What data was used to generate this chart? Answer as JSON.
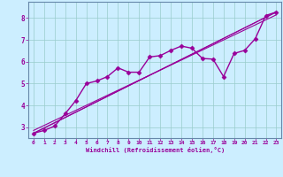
{
  "xlabel": "Windchill (Refroidissement éolien,°C)",
  "bg_color": "#cceeff",
  "line_color": "#990099",
  "grid_color": "#99cccc",
  "spine_color": "#6688aa",
  "xlim": [
    -0.5,
    23.5
  ],
  "ylim": [
    2.5,
    8.75
  ],
  "xticks": [
    0,
    1,
    2,
    3,
    4,
    5,
    6,
    7,
    8,
    9,
    10,
    11,
    12,
    13,
    14,
    15,
    16,
    17,
    18,
    19,
    20,
    21,
    22,
    23
  ],
  "yticks": [
    3,
    4,
    5,
    6,
    7,
    8
  ],
  "series_main": {
    "x": [
      0,
      1,
      2,
      3,
      4,
      5,
      6,
      7,
      8,
      9,
      10,
      11,
      12,
      13,
      14,
      15,
      16,
      17,
      18,
      19,
      20,
      21,
      22,
      23
    ],
    "y": [
      2.72,
      2.85,
      3.05,
      3.62,
      4.22,
      5.0,
      5.12,
      5.32,
      5.72,
      5.52,
      5.52,
      6.22,
      6.28,
      6.52,
      6.72,
      6.62,
      6.15,
      6.12,
      5.32,
      6.38,
      6.52,
      7.05,
      8.12,
      8.28
    ]
  },
  "trend_lines": [
    {
      "x": [
        0,
        23
      ],
      "y": [
        2.72,
        8.28
      ]
    },
    {
      "x": [
        0,
        23
      ],
      "y": [
        2.72,
        8.28
      ]
    },
    {
      "x": [
        0,
        23
      ],
      "y": [
        2.85,
        8.15
      ]
    }
  ]
}
